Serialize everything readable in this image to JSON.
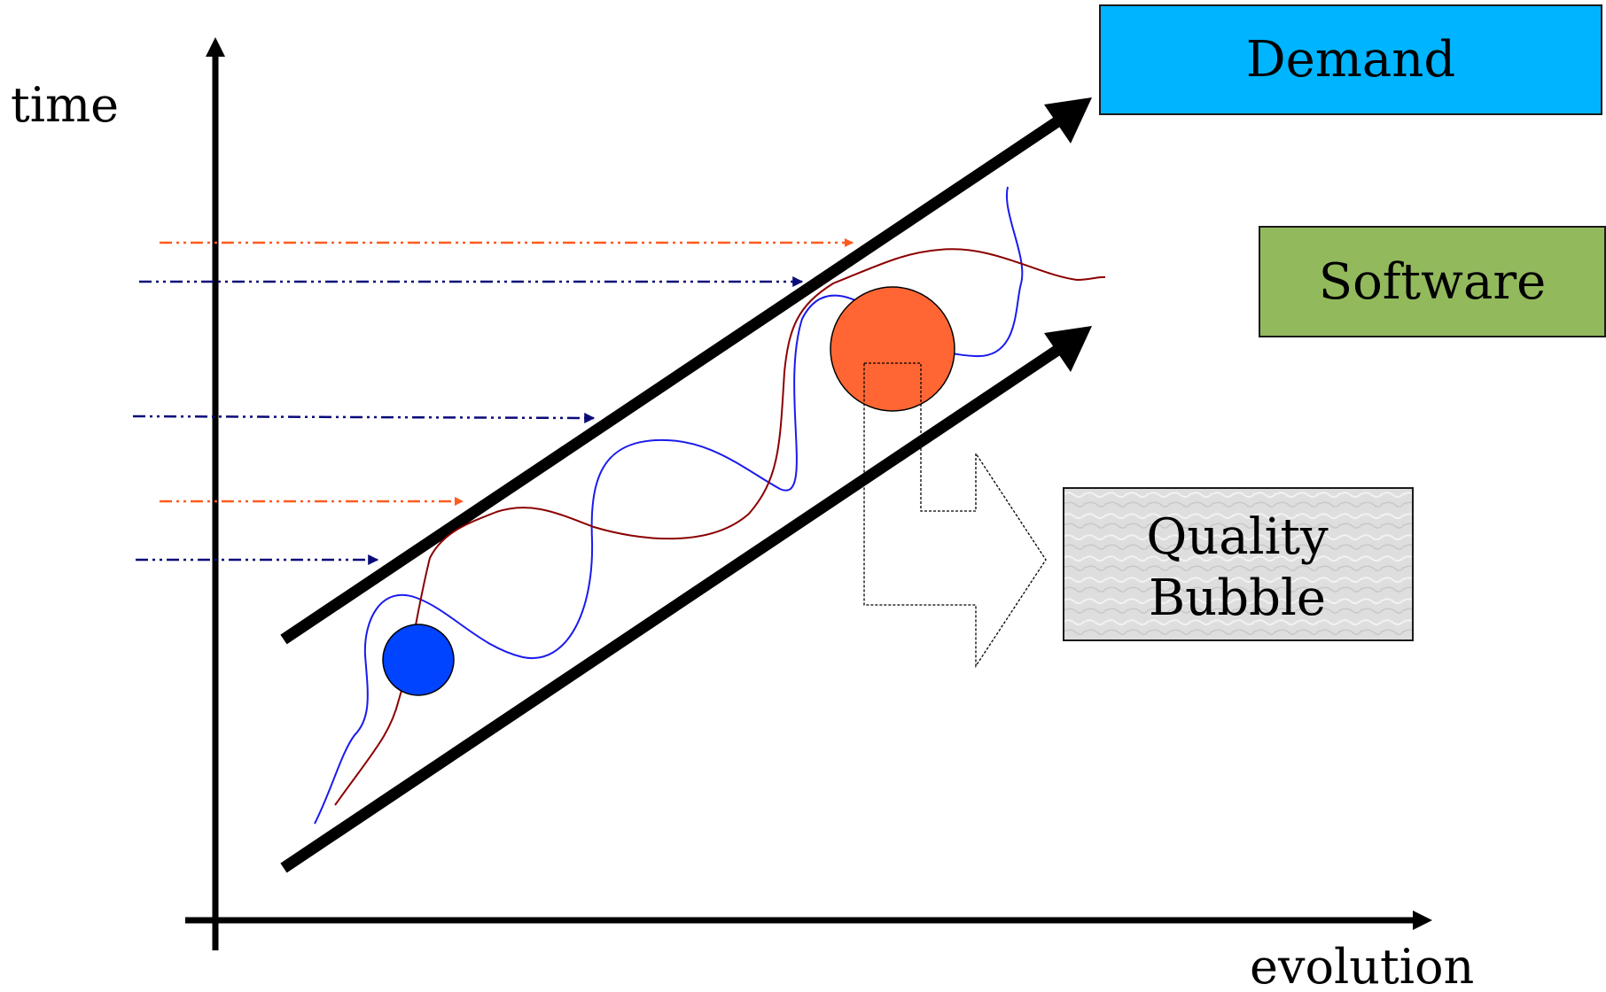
{
  "axes": {
    "y_label": "time",
    "x_label": "evolution"
  },
  "legend": {
    "demand": {
      "label": "Demand",
      "color": "#00b4ff"
    },
    "software": {
      "label": "Software",
      "color": "#93b95d"
    }
  },
  "callout": {
    "line1": "Quality",
    "line2": "Bubble"
  },
  "colors": {
    "blue_series": "#1a1aee",
    "red_series": "#8b0000",
    "orange_arrow": "#ff5a1f",
    "navy_arrow": "#0a0a7a",
    "blue_bubble": "#0044ff",
    "orange_bubble": "#ff6633"
  }
}
